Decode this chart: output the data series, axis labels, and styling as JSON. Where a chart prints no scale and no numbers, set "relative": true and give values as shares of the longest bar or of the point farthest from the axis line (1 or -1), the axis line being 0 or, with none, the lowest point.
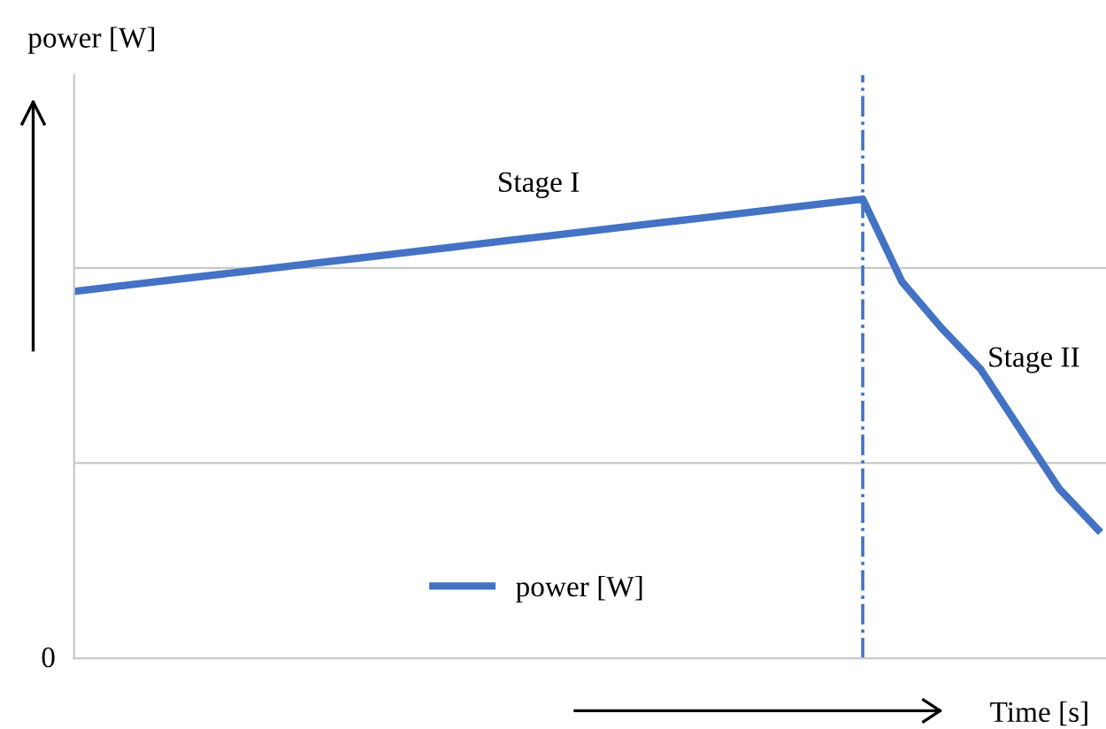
{
  "chart_data": {
    "type": "line",
    "relative": true,
    "xlabel": "Time [s]",
    "ylabel": "power [W]",
    "categories": [
      null,
      null,
      null,
      null,
      null,
      null,
      null,
      null,
      null,
      null,
      null,
      null,
      null,
      null,
      null,
      null,
      null,
      null,
      null,
      null,
      null,
      null,
      null,
      null,
      null,
      null,
      null
    ],
    "series": [
      {
        "name": "power [W]",
        "color": "#4472c4",
        "values": [
          0.8,
          0.81,
          0.82,
          0.83,
          0.84,
          0.85,
          0.86,
          0.87,
          0.88,
          0.89,
          0.9,
          0.91,
          0.92,
          0.93,
          0.94,
          0.95,
          0.96,
          0.97,
          0.98,
          0.99,
          1.0,
          0.82,
          0.72,
          0.63,
          0.5,
          0.37,
          0.28
        ]
      }
    ],
    "ref_lines": [
      {
        "axis": "y",
        "value": 0.425,
        "color": "#c8c8c8"
      },
      {
        "axis": "y",
        "value": 0.85,
        "color": "#c8c8c8"
      }
    ],
    "legend": "bottom",
    "marker": "none",
    "line_style": "solid",
    "annotations": [
      "Stage I",
      "Stage II",
      "0"
    ]
  }
}
